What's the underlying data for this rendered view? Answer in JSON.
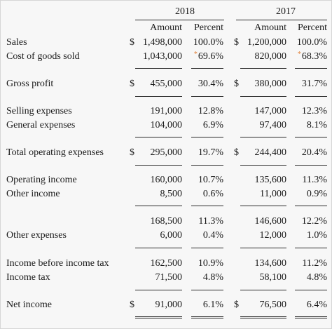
{
  "headers": {
    "year_2018": "2018",
    "year_2017": "2017",
    "amount": "Amount",
    "percent": "Percent"
  },
  "annotation_mark": "*",
  "rows": {
    "sales": {
      "label": "Sales",
      "d18": "$",
      "a18": "1,498,000",
      "p18": "100.0%",
      "d17": "$",
      "a17": "1,200,000",
      "p17": "100.0%"
    },
    "cogs": {
      "label": "Cost of goods sold",
      "a18": "1,043,000",
      "p18": "69.6%",
      "a17": "820,000",
      "p17": "68.3%"
    },
    "gross": {
      "label": "Gross profit",
      "d18": "$",
      "a18": "455,000",
      "p18": "30.4%",
      "d17": "$",
      "a17": "380,000",
      "p17": "31.7%"
    },
    "selling": {
      "label": "Selling expenses",
      "a18": "191,000",
      "p18": "12.8%",
      "a17": "147,000",
      "p17": "12.3%"
    },
    "general": {
      "label": "General expenses",
      "a18": "104,000",
      "p18": "6.9%",
      "a17": "97,400",
      "p17": "8.1%"
    },
    "total_op": {
      "label": "Total operating expenses",
      "d18": "$",
      "a18": "295,000",
      "p18": "19.7%",
      "d17": "$",
      "a17": "244,400",
      "p17": "20.4%"
    },
    "op_income": {
      "label": "Operating income",
      "a18": "160,000",
      "p18": "10.7%",
      "a17": "135,600",
      "p17": "11.3%"
    },
    "other_income": {
      "label": "Other income",
      "a18": "8,500",
      "p18": "0.6%",
      "a17": "11,000",
      "p17": "0.9%"
    },
    "subtotal": {
      "label": "",
      "a18": "168,500",
      "p18": "11.3%",
      "a17": "146,600",
      "p17": "12.2%"
    },
    "other_exp": {
      "label": "Other expenses",
      "a18": "6,000",
      "p18": "0.4%",
      "a17": "12,000",
      "p17": "1.0%"
    },
    "pretax": {
      "label": "Income before income tax",
      "a18": "162,500",
      "p18": "10.9%",
      "a17": "134,600",
      "p17": "11.2%"
    },
    "tax": {
      "label": "Income tax",
      "a18": "71,500",
      "p18": "4.8%",
      "a17": "58,100",
      "p17": "4.8%"
    },
    "net": {
      "label": "Net income",
      "d18": "$",
      "a18": "91,000",
      "p18": "6.1%",
      "d17": "$",
      "a17": "76,500",
      "p17": "6.4%"
    }
  },
  "colors": {
    "annotation": "#e07a2e",
    "rule": "#2b2b2b"
  }
}
